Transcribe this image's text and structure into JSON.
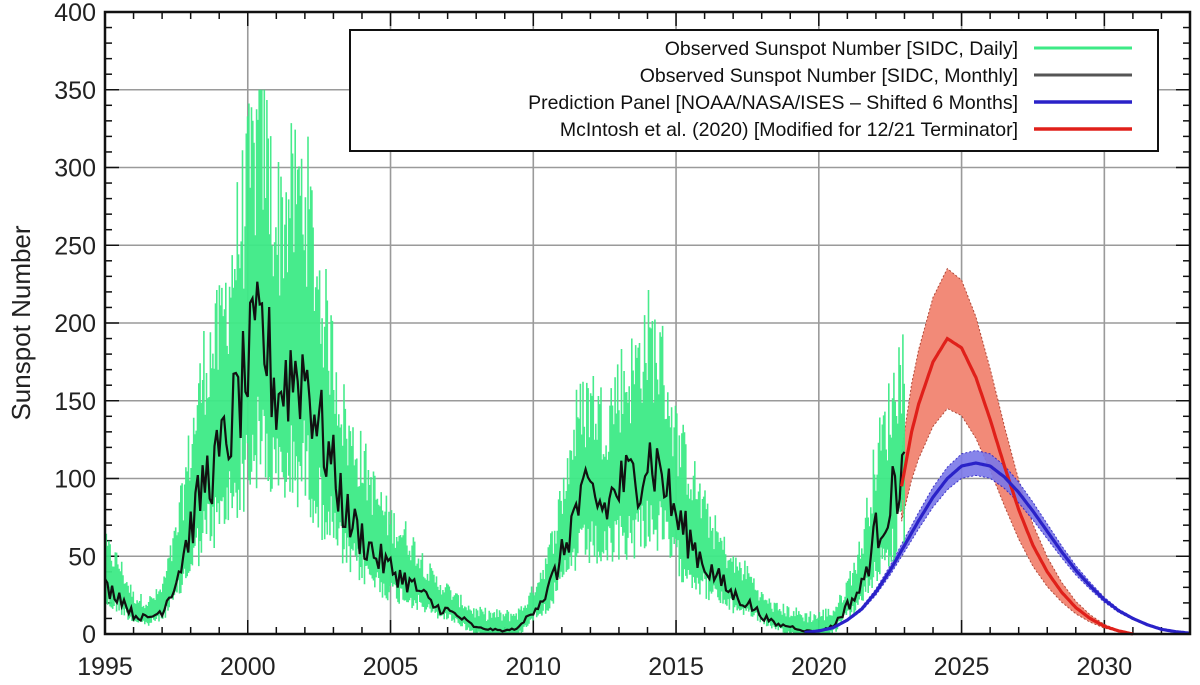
{
  "chart_data": {
    "type": "line",
    "title": "",
    "xlabel": "",
    "ylabel": "Sunspot Number",
    "xlim": [
      1995,
      2033
    ],
    "ylim": [
      0,
      400
    ],
    "x_ticks": [
      1995,
      2000,
      2005,
      2010,
      2015,
      2020,
      2025,
      2030
    ],
    "y_ticks": [
      0,
      50,
      100,
      150,
      200,
      250,
      300,
      350,
      400
    ],
    "grid": true,
    "legend_position": "top-right",
    "colors": {
      "daily": "#3dea86",
      "monthly": "#111111",
      "prediction_panel": "#2a22c8",
      "prediction_panel_band": "#7b78e8",
      "mcintosh": "#e0201a",
      "mcintosh_band": "#f28a78"
    },
    "series": [
      {
        "name": "Observed Sunspot Number [SIDC, Daily]",
        "style": "light-green",
        "x": [
          1995,
          1995.5,
          1996,
          1996.5,
          1997,
          1997.5,
          1998,
          1998.5,
          1999,
          1999.5,
          2000,
          2000.5,
          2001,
          2001.5,
          2002,
          2002.5,
          2003,
          2003.5,
          2004,
          2004.5,
          2005,
          2005.5,
          2006,
          2006.5,
          2007,
          2007.5,
          2008,
          2008.5,
          2009,
          2009.5,
          2010,
          2010.5,
          2011,
          2011.5,
          2012,
          2012.5,
          2013,
          2013.5,
          2014,
          2014.5,
          2015,
          2015.5,
          2016,
          2016.5,
          2017,
          2017.5,
          2018,
          2018.5,
          2019,
          2019.5,
          2020,
          2020.5,
          2021,
          2021.5,
          2022,
          2022.5,
          2023
        ],
        "values": [
          35,
          28,
          15,
          12,
          18,
          40,
          75,
          110,
          120,
          150,
          180,
          205,
          165,
          175,
          180,
          140,
          110,
          80,
          70,
          55,
          45,
          40,
          32,
          22,
          18,
          12,
          5,
          4,
          3,
          5,
          18,
          30,
          55,
          85,
          95,
          85,
          100,
          105,
          120,
          110,
          80,
          65,
          50,
          38,
          28,
          25,
          15,
          8,
          6,
          3,
          3,
          6,
          20,
          35,
          70,
          90,
          115
        ],
        "max_daily": 350
      },
      {
        "name": "Observed Sunspot Number [SIDC, Monthly]",
        "style": "black",
        "x": [
          1995,
          1995.5,
          1996,
          1996.5,
          1997,
          1997.5,
          1998,
          1998.5,
          1999,
          1999.5,
          2000,
          2000.5,
          2001,
          2001.5,
          2002,
          2002.5,
          2003,
          2003.5,
          2004,
          2004.5,
          2005,
          2005.5,
          2006,
          2006.5,
          2007,
          2007.5,
          2008,
          2008.5,
          2009,
          2009.5,
          2010,
          2010.5,
          2011,
          2011.5,
          2012,
          2012.5,
          2013,
          2013.5,
          2014,
          2014.5,
          2015,
          2015.5,
          2016,
          2016.5,
          2017,
          2017.5,
          2018,
          2018.5,
          2019,
          2019.5,
          2020,
          2020.5,
          2021,
          2021.5,
          2022,
          2022.5,
          2023
        ],
        "values": [
          30,
          25,
          12,
          10,
          15,
          35,
          68,
          100,
          112,
          140,
          170,
          195,
          155,
          168,
          170,
          135,
          105,
          75,
          62,
          50,
          42,
          35,
          28,
          18,
          15,
          10,
          4,
          3,
          2,
          4,
          16,
          27,
          50,
          80,
          90,
          80,
          95,
          100,
          115,
          104,
          75,
          60,
          45,
          35,
          25,
          20,
          12,
          6,
          5,
          2,
          2,
          5,
          18,
          30,
          65,
          85,
          110
        ]
      },
      {
        "name": "Prediction Panel [NOAA/NASA/ISES – Shifted 6 Months]",
        "style": "blue",
        "x": [
          2019.5,
          2020,
          2020.5,
          2021,
          2021.5,
          2022,
          2022.5,
          2023,
          2023.5,
          2024,
          2024.5,
          2025,
          2025.5,
          2026,
          2026.5,
          2027,
          2027.5,
          2028,
          2028.5,
          2029,
          2029.5,
          2030,
          2030.5,
          2031,
          2031.5,
          2032,
          2032.5,
          2033
        ],
        "values": [
          1,
          2,
          4,
          9,
          16,
          27,
          41,
          57,
          73,
          88,
          100,
          108,
          110,
          108,
          101,
          91,
          79,
          66,
          53,
          41,
          31,
          22,
          15,
          10,
          6,
          3,
          1.5,
          0.5
        ],
        "band_halfwidth": 8
      },
      {
        "name": "McIntosh et al. (2020) [Modified for 12/21 Terminator]",
        "style": "red",
        "x": [
          2022.9,
          2023.25,
          2023.5,
          2024,
          2024.5,
          2025,
          2025.5,
          2026,
          2026.5,
          2027,
          2027.5,
          2028,
          2028.5,
          2029,
          2029.5,
          2030,
          2030.5,
          2031
        ],
        "values": [
          95,
          130,
          148,
          175,
          190,
          184,
          165,
          138,
          108,
          80,
          57,
          40,
          27,
          17,
          10,
          5,
          2,
          0
        ],
        "band_halfwidth_at_peak": 45
      }
    ]
  }
}
